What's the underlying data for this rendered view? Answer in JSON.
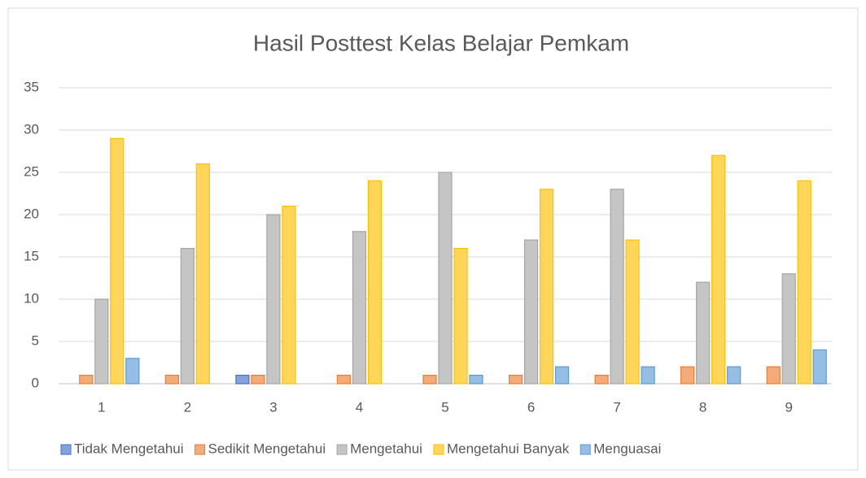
{
  "chart_data": {
    "type": "bar",
    "title": "Hasil Posttest Kelas Belajar Pemkam",
    "categories": [
      "1",
      "2",
      "3",
      "4",
      "5",
      "6",
      "7",
      "8",
      "9"
    ],
    "series": [
      {
        "name": "Tidak Mengetahui",
        "color": "#4472c4",
        "values": [
          0,
          0,
          1,
          0,
          0,
          0,
          0,
          0,
          0
        ]
      },
      {
        "name": "Sedikit Mengetahui",
        "color": "#ed7d31",
        "values": [
          1,
          1,
          1,
          1,
          1,
          1,
          1,
          2,
          2
        ]
      },
      {
        "name": "Mengetahui",
        "color": "#a5a5a5",
        "values": [
          10,
          16,
          20,
          18,
          25,
          17,
          23,
          12,
          13
        ]
      },
      {
        "name": "Mengetahui Banyak",
        "color": "#ffc000",
        "values": [
          29,
          26,
          21,
          24,
          16,
          23,
          17,
          27,
          24
        ]
      },
      {
        "name": "Menguasai",
        "color": "#5b9bd5",
        "values": [
          3,
          0,
          0,
          0,
          1,
          2,
          2,
          2,
          4
        ]
      }
    ],
    "ylim": [
      0,
      35
    ],
    "yticks": [
      0,
      5,
      10,
      15,
      20,
      25,
      30,
      35
    ],
    "grid": true,
    "legend": "bottom"
  }
}
